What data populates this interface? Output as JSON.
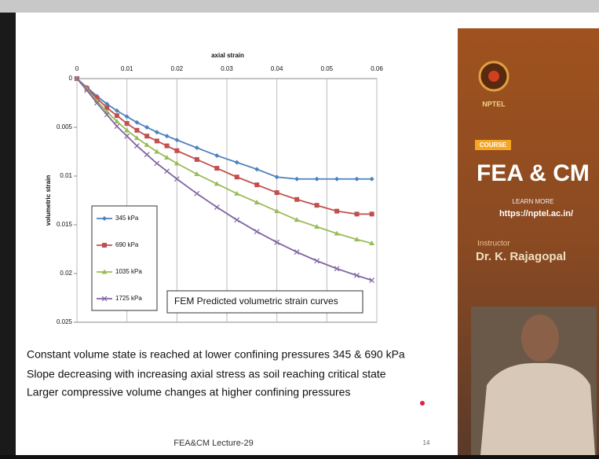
{
  "chart_data": {
    "type": "line",
    "x_label": "axial strain",
    "y_label": "volumetric strain",
    "annotation": "FEM Predicted volumetric strain curves",
    "x": [
      0,
      0.002,
      0.004,
      0.006,
      0.008,
      0.01,
      0.012,
      0.014,
      0.016,
      0.018,
      0.02,
      0.024,
      0.028,
      0.032,
      0.036,
      0.04,
      0.044,
      0.048,
      0.052,
      0.056,
      0.059
    ],
    "series": [
      {
        "name": "345 kPa",
        "color": "#4f81bd",
        "values": [
          0,
          0.0009,
          0.0018,
          0.0026,
          0.0033,
          0.0039,
          0.0045,
          0.005,
          0.0055,
          0.0059,
          0.0063,
          0.0071,
          0.0079,
          0.0086,
          0.0093,
          0.0101,
          0.0103,
          0.0103,
          0.0103,
          0.0103,
          0.0103
        ]
      },
      {
        "name": "690 kPa",
        "color": "#c0504d",
        "values": [
          0,
          0.001,
          0.002,
          0.003,
          0.0038,
          0.0046,
          0.0053,
          0.0059,
          0.0064,
          0.0069,
          0.0074,
          0.0083,
          0.0092,
          0.0101,
          0.0109,
          0.0117,
          0.0124,
          0.013,
          0.0136,
          0.0139,
          0.0139
        ]
      },
      {
        "name": "1035 kPa",
        "color": "#9bbb59",
        "values": [
          0,
          0.0011,
          0.0023,
          0.0034,
          0.0044,
          0.0053,
          0.0061,
          0.0068,
          0.0075,
          0.0081,
          0.0087,
          0.0098,
          0.0108,
          0.0118,
          0.0127,
          0.0136,
          0.0145,
          0.0152,
          0.0159,
          0.0165,
          0.0169
        ]
      },
      {
        "name": "1725 kPa",
        "color": "#8064a2",
        "values": [
          0,
          0.0012,
          0.0025,
          0.0037,
          0.0049,
          0.0059,
          0.0069,
          0.0078,
          0.0087,
          0.0095,
          0.0103,
          0.0118,
          0.0132,
          0.0145,
          0.0157,
          0.0168,
          0.0178,
          0.0187,
          0.0195,
          0.0202,
          0.0207
        ]
      }
    ],
    "xlim": [
      0,
      0.06
    ],
    "xticks": [
      0,
      0.01,
      0.02,
      0.03,
      0.04,
      0.05,
      0.06
    ],
    "ylim": [
      0,
      0.025
    ],
    "yticks": [
      0,
      0.005,
      0.01,
      0.015,
      0.02,
      0.025
    ],
    "y_inverted": true,
    "x_axis_position": "top",
    "grid": true,
    "legend": "lower-left"
  },
  "slide": {
    "bullets": [
      "Constant volume state is reached at lower confining pressures 345 & 690 kPa",
      "Slope decreasing with increasing axial stress as soil reaching critical state",
      "Larger compressive volume changes at higher confining pressures"
    ],
    "footer": "FEA&CM Lecture-29",
    "page": "14"
  },
  "sidebar": {
    "logo_text": "NPTEL",
    "badge": "COURSE",
    "course": "FEA & CM",
    "learn": "LEARN MORE",
    "url": "https://nptel.ac.in/",
    "instructor_label": "Instructor",
    "instructor": "Dr. K. Rajagopal"
  }
}
